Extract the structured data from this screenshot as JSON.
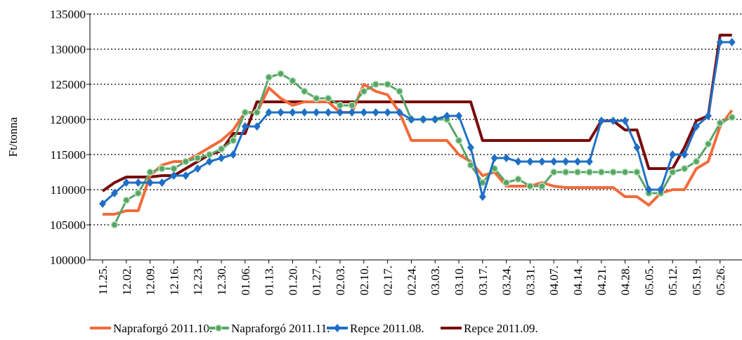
{
  "chart_data": {
    "type": "line",
    "y_label": "Ft/tonna",
    "categories": [
      "11.25.",
      null,
      "12.02.",
      null,
      "12.09.",
      null,
      "12.16.",
      null,
      "12.23.",
      null,
      "12.30.",
      null,
      "01.06.",
      null,
      "01.13.",
      null,
      "01.20.",
      null,
      "01.27.",
      null,
      "02.03.",
      null,
      "02.10.",
      null,
      "02.17.",
      null,
      "02.24.",
      null,
      "03.03.",
      null,
      "03.10.",
      null,
      "03.17.",
      null,
      "03.24.",
      null,
      "03.31.",
      null,
      "04.07.",
      null,
      "04.14.",
      null,
      "04.21.",
      null,
      "04.28.",
      null,
      "05.05.",
      null,
      "05.12.",
      null,
      "05.19.",
      null,
      "05.26.",
      null
    ],
    "series": [
      {
        "name": "Napraforgó 2011.10.",
        "color": "#f26b3a",
        "marker": "none",
        "values": [
          106500,
          106500,
          107000,
          107000,
          112000,
          113500,
          114000,
          114000,
          115000,
          116000,
          117000,
          118500,
          121000,
          121000,
          124500,
          123000,
          122000,
          122500,
          122500,
          122500,
          121000,
          121000,
          125000,
          124000,
          123500,
          121000,
          117000,
          117000,
          117000,
          117000,
          115000,
          114000,
          112000,
          112500,
          110500,
          110500,
          110500,
          111000,
          110500,
          110300,
          110300,
          110300,
          110300,
          110300,
          109000,
          109000,
          107800,
          109500,
          110000,
          110000,
          113000,
          114000,
          119000,
          121300
        ]
      },
      {
        "name": "Napraforgó 2011.11.",
        "color": "#5aa36a",
        "marker": "circle",
        "values": [
          null,
          105000,
          108500,
          109500,
          112500,
          113000,
          113000,
          114000,
          114500,
          115000,
          115800,
          117000,
          121000,
          121000,
          126000,
          126500,
          125500,
          124000,
          123000,
          123000,
          122000,
          122000,
          124000,
          125000,
          125000,
          124000,
          120000,
          120000,
          120000,
          120000,
          117000,
          113500,
          111000,
          113000,
          111000,
          111500,
          110500,
          110500,
          112500,
          112500,
          112500,
          112500,
          112500,
          112500,
          112500,
          112500,
          109500,
          109500,
          112500,
          113000,
          114000,
          116500,
          119500,
          120300
        ]
      },
      {
        "name": "Repce 2011.08.",
        "color": "#1f6fc5",
        "marker": "diamond",
        "values": [
          108000,
          109500,
          111000,
          111000,
          111000,
          111000,
          112000,
          112000,
          113000,
          114000,
          114500,
          115000,
          119000,
          119000,
          121000,
          121000,
          121000,
          121000,
          121000,
          121000,
          121000,
          121000,
          121000,
          121000,
          121000,
          121000,
          120000,
          120000,
          120000,
          120500,
          120500,
          116000,
          109000,
          114500,
          114500,
          114000,
          114000,
          114000,
          114000,
          114000,
          114000,
          114000,
          119800,
          119800,
          119800,
          116000,
          110000,
          110000,
          115000,
          115000,
          119000,
          120500,
          131000,
          131000
        ]
      },
      {
        "name": "Repce 2011.09.",
        "color": "#7a0a0a",
        "marker": "none",
        "values": [
          109800,
          111000,
          111800,
          111800,
          111800,
          112000,
          112000,
          113000,
          114000,
          115000,
          115500,
          118000,
          118000,
          122500,
          122500,
          122500,
          122500,
          122500,
          122500,
          122500,
          122500,
          122500,
          122500,
          122500,
          122500,
          122500,
          122500,
          122500,
          122500,
          122500,
          122500,
          122500,
          117000,
          117000,
          117000,
          117000,
          117000,
          117000,
          117000,
          117000,
          117000,
          117000,
          119800,
          119800,
          118500,
          118500,
          113000,
          113000,
          113000,
          116000,
          119800,
          120500,
          132000,
          132000
        ]
      }
    ],
    "ylim": [
      100000,
      135000
    ],
    "yticks": [
      100000,
      105000,
      110000,
      115000,
      120000,
      125000,
      130000,
      135000
    ],
    "grid": true,
    "legend": "bottom"
  }
}
